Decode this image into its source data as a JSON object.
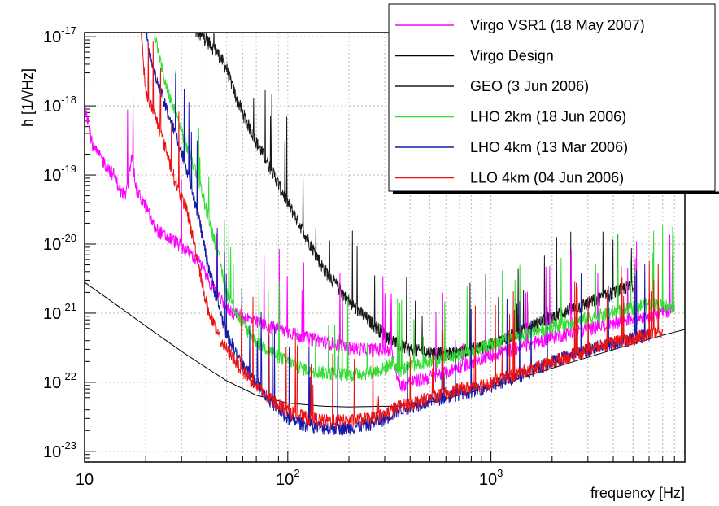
{
  "chart_data": {
    "type": "line",
    "title": "",
    "xlabel": "frequency [Hz]",
    "ylabel": "h  [1/\\/Hz]",
    "x_scale": "log",
    "y_scale": "log",
    "xlim": [
      10,
      9000
    ],
    "ylim": [
      7e-24,
      1.15e-17
    ],
    "grid": true,
    "legend_position": "top-right",
    "x_ticks": [
      {
        "value": 10,
        "base": "10",
        "exp": ""
      },
      {
        "value": 100,
        "base": "10",
        "exp": "2"
      },
      {
        "value": 1000,
        "base": "10",
        "exp": "3"
      }
    ],
    "y_ticks": [
      {
        "value": 1e-17,
        "base": "10",
        "exp": "-17"
      },
      {
        "value": 1e-18,
        "base": "10",
        "exp": "-18"
      },
      {
        "value": 1e-19,
        "base": "10",
        "exp": "-19"
      },
      {
        "value": 1e-20,
        "base": "10",
        "exp": "-20"
      },
      {
        "value": 1e-21,
        "base": "10",
        "exp": "-21"
      },
      {
        "value": 1e-22,
        "base": "10",
        "exp": "-22"
      },
      {
        "value": 1e-23,
        "base": "10",
        "exp": "-23"
      }
    ],
    "series": [
      {
        "name": "Virgo VSR1 (18 May 2007)",
        "color": "#ff00ff",
        "x": [
          10,
          11,
          12,
          13,
          14,
          15,
          16,
          17,
          18,
          20,
          22,
          25,
          28,
          32,
          36,
          40,
          45,
          50,
          55,
          60,
          70,
          80,
          90,
          100,
          120,
          150,
          180,
          200,
          250,
          300,
          330,
          350,
          400,
          450,
          500,
          600,
          700,
          800,
          1000,
          1500,
          2000,
          3000,
          4000,
          5000,
          6000,
          7000,
          8000
        ],
        "y": [
          1.2e-18,
          2.5e-19,
          1.8e-19,
          1.3e-19,
          1e-19,
          6e-20,
          5e-20,
          2e-19,
          6e-20,
          3.5e-20,
          1.8e-20,
          1.3e-20,
          1.1e-20,
          8e-21,
          6e-21,
          3.5e-21,
          1.8e-21,
          1.2e-21,
          1e-21,
          9e-22,
          7.5e-22,
          6.5e-22,
          6e-22,
          5.5e-22,
          4.5e-22,
          4e-22,
          3.5e-22,
          3.2e-22,
          3e-22,
          3e-22,
          2.5e-22,
          9e-23,
          1e-22,
          1.1e-22,
          1.2e-22,
          1.4e-22,
          1.7e-22,
          2e-22,
          2.5e-22,
          3.5e-22,
          4.5e-22,
          6e-22,
          7.5e-22,
          8.5e-22,
          9.5e-22,
          1.05e-21,
          1.2e-21
        ]
      },
      {
        "name": "Virgo Design",
        "color": "#000000",
        "x": [
          10,
          15,
          20,
          30,
          40,
          50,
          70,
          100,
          150,
          200,
          300,
          350,
          500,
          700,
          1000,
          2000,
          3000,
          5000,
          7000,
          9000
        ],
        "y": [
          2.8e-21,
          1.2e-21,
          6.5e-22,
          2.8e-22,
          1.6e-22,
          1.05e-22,
          6.5e-23,
          5e-23,
          4.5e-23,
          4.4e-23,
          4.5e-23,
          4.5e-23,
          5.2e-23,
          6.5e-23,
          8.5e-23,
          1.6e-22,
          2.3e-22,
          3.6e-22,
          4.8e-22,
          5.8e-22
        ]
      },
      {
        "name": "GEO (3 Jun 2006)",
        "color": "#1a1a1a",
        "x": [
          35,
          40,
          45,
          50,
          55,
          60,
          70,
          80,
          100,
          120,
          150,
          200,
          250,
          300,
          350,
          400,
          500,
          600,
          700,
          1000,
          1500,
          2000,
          3000,
          4000,
          5000
        ],
        "y": [
          1.2e-17,
          9e-18,
          6e-18,
          3.5e-18,
          1.5e-18,
          8e-19,
          3e-19,
          1.5e-19,
          4e-20,
          1.5e-20,
          4.5e-21,
          1.5e-21,
          8e-22,
          5e-22,
          3.5e-22,
          3e-22,
          2.7e-22,
          2.6e-22,
          2.8e-22,
          3.5e-22,
          6e-22,
          9e-22,
          1.4e-21,
          2e-21,
          2.6e-21
        ]
      },
      {
        "name": "LHO 2km (18 Jun 2006)",
        "color": "#33dd33",
        "x": [
          22,
          25,
          28,
          32,
          36,
          40,
          45,
          50,
          60,
          70,
          80,
          100,
          120,
          150,
          200,
          250,
          300,
          330,
          350,
          400,
          500,
          700,
          1000,
          1500,
          2000,
          3000,
          4000,
          5000,
          6000,
          7000,
          8000
        ],
        "y": [
          1.2e-17,
          2e-18,
          8e-19,
          2.5e-19,
          1e-19,
          3e-20,
          8e-21,
          2e-21,
          7e-22,
          4e-22,
          3e-22,
          2e-22,
          1.6e-22,
          1.4e-22,
          1.3e-22,
          1.4e-22,
          1.6e-22,
          2e-22,
          1.5e-22,
          1.7e-22,
          2e-22,
          2.5e-22,
          3.5e-22,
          5e-22,
          6.5e-22,
          8.5e-22,
          1.05e-21,
          1.2e-21,
          1.4e-21,
          1.3e-21,
          1.3e-21
        ]
      },
      {
        "name": "LHO 4km (13 Mar 2006)",
        "color": "#1a1aaa",
        "x": [
          20,
          22,
          25,
          28,
          32,
          36,
          40,
          45,
          50,
          60,
          70,
          80,
          100,
          120,
          150,
          200,
          250,
          300,
          350,
          400,
          500,
          700,
          1000,
          1500,
          2000,
          3000,
          4000,
          5000,
          6000
        ],
        "y": [
          1.2e-17,
          3e-18,
          1e-18,
          4e-19,
          1.2e-19,
          3e-20,
          6e-21,
          1.5e-21,
          5e-22,
          1.8e-22,
          1e-22,
          6e-23,
          3e-23,
          2.5e-23,
          2.2e-23,
          2.2e-23,
          2.5e-23,
          3e-23,
          4e-23,
          4.5e-23,
          5.5e-23,
          7e-23,
          9e-23,
          1.4e-22,
          2e-22,
          3e-22,
          3.8e-22,
          4.5e-22,
          5e-22
        ]
      },
      {
        "name": "LLO 4km (04 Jun 2006)",
        "color": "#ee1111",
        "x": [
          19,
          20,
          22,
          25,
          28,
          32,
          36,
          40,
          45,
          50,
          60,
          70,
          80,
          100,
          120,
          150,
          200,
          250,
          300,
          350,
          400,
          500,
          700,
          1000,
          1500,
          2000,
          3000,
          4000,
          5000,
          6000,
          7000
        ],
        "y": [
          1.2e-17,
          1.5e-18,
          8e-19,
          2.5e-19,
          8e-20,
          3e-20,
          6e-21,
          1.3e-21,
          5e-22,
          3e-22,
          1.5e-22,
          9e-23,
          6e-23,
          4e-23,
          3.2e-23,
          2.8e-23,
          2.8e-23,
          3e-23,
          3.5e-23,
          4.5e-23,
          5e-23,
          6e-23,
          8e-23,
          1e-22,
          1.5e-22,
          2e-22,
          3e-22,
          3.8e-22,
          4.3e-22,
          5e-22,
          5.5e-22
        ]
      }
    ]
  }
}
